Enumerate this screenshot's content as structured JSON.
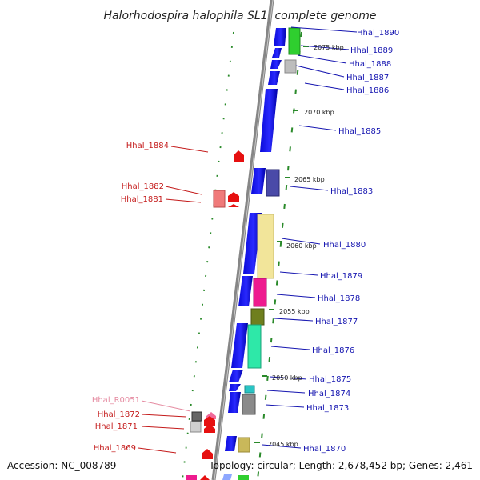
{
  "title": "Halorhodospira halophila SL1, complete genome",
  "footer": {
    "accession": "Accession: NC_008789",
    "summary": "Topology: circular; Length: 2,678,452 bp; Genes: 2,461"
  },
  "scale_labels": [
    "2075 kbp",
    "2070 kbp",
    "2065 kbp",
    "2060 kbp",
    "2055 kbp",
    "2050 kbp",
    "2045 kbp"
  ],
  "genes_plus_strand": [
    "Hhal_1890",
    "Hhal_1889",
    "Hhal_1888",
    "Hhal_1887",
    "Hhal_1886",
    "Hhal_1885",
    "Hhal_1883",
    "Hhal_1880",
    "Hhal_1879",
    "Hhal_1878",
    "Hhal_1877",
    "Hhal_1876",
    "Hhal_1875",
    "Hhal_1874",
    "Hhal_1873",
    "Hhal_1870"
  ],
  "genes_minus_strand": [
    "Hhal_1884",
    "Hhal_1882",
    "Hhal_1881",
    "Hhal_1872",
    "Hhal_1871",
    "Hhal_1869"
  ],
  "rna_genes": [
    "Hhal_R0051"
  ],
  "colors": {
    "strand_plus": "#1414e6",
    "strand_minus": "#e60e0e",
    "backbone": "#8c8c8c",
    "dots": "#2a8a2a",
    "label_plus": "#1515b0",
    "label_minus": "#c41a1a",
    "label_rna": "#e58aa0"
  }
}
